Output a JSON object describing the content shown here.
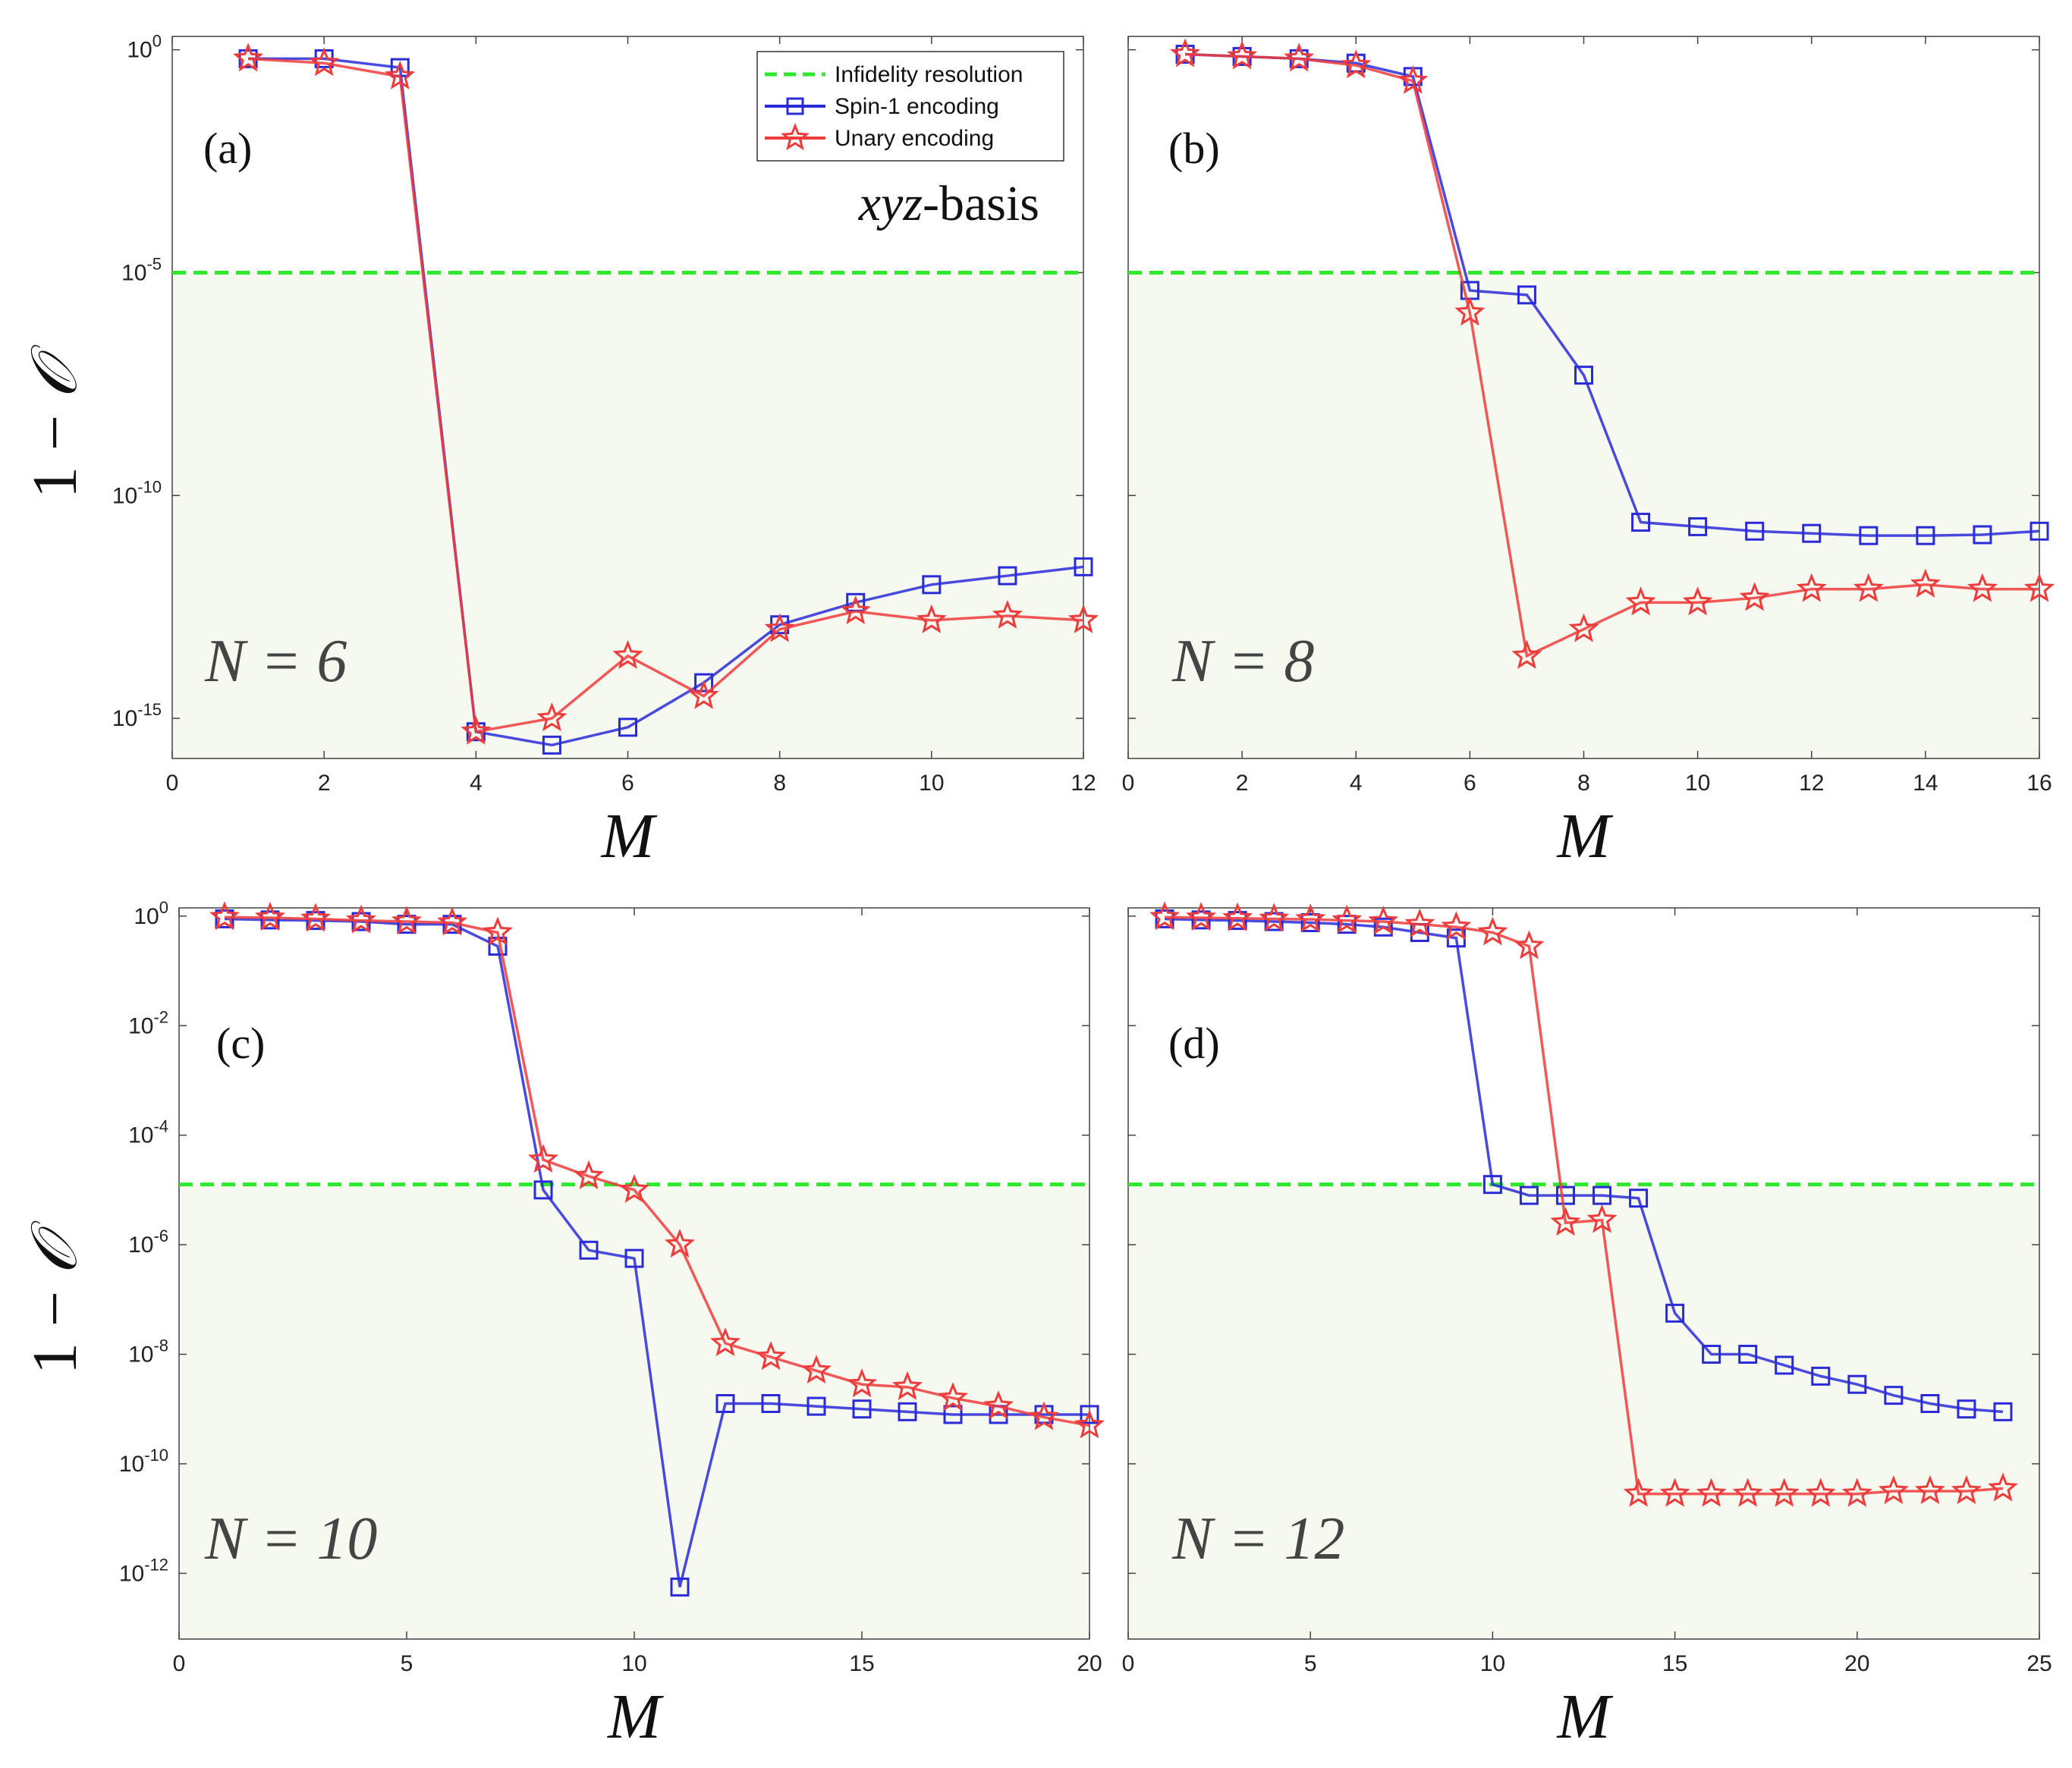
{
  "figure": {
    "ylabel_prefix": "1 −",
    "ylabel_symbol": "𝒪",
    "basis_italic": "xyz",
    "basis_suffix": "-basis"
  },
  "legend": {
    "resolution": "Infidelity resolution",
    "spin1": "Spin-1 encoding",
    "unary": "Unary encoding"
  },
  "colors": {
    "spin1": "#2a2ad8",
    "unary": "#ee3b3b",
    "resolution": "#2ee82e",
    "shade": "#f5f9ef"
  },
  "chart_data": [
    {
      "type": "line",
      "panel": "(a)",
      "n_label": "N = 6",
      "xlabel": "M",
      "ylabel": "1 − 𝒪",
      "yscale": "log",
      "xlim": [
        0,
        12
      ],
      "ylim": [
        -15.9,
        0.3
      ],
      "xticks": [
        "0",
        "2",
        "4",
        "6",
        "8",
        "10",
        "12"
      ],
      "yticks": [
        {
          "exp": 0,
          "label": "0"
        },
        {
          "exp": -5,
          "label": "-5"
        },
        {
          "exp": -10,
          "label": "-10"
        },
        {
          "exp": -15,
          "label": "-15"
        }
      ],
      "resolution_log10": -5,
      "series": [
        {
          "name": "Spin-1 encoding",
          "x": [
            1,
            2,
            3,
            4,
            5,
            6,
            7,
            8,
            9,
            10,
            11,
            12
          ],
          "log10": [
            -0.2,
            -0.2,
            -0.4,
            -15.3,
            -15.6,
            -15.2,
            -14.2,
            -12.9,
            -12.4,
            -12.0,
            -11.8,
            -11.6
          ]
        },
        {
          "name": "Unary encoding",
          "x": [
            1,
            2,
            3,
            4,
            5,
            6,
            7,
            8,
            9,
            10,
            11,
            12
          ],
          "log10": [
            -0.2,
            -0.3,
            -0.6,
            -15.3,
            -15.0,
            -13.6,
            -14.5,
            -13.0,
            -12.6,
            -12.8,
            -12.7,
            -12.8
          ]
        }
      ]
    },
    {
      "type": "line",
      "panel": "(b)",
      "n_label": "N = 8",
      "xlabel": "M",
      "ylabel": "1 − 𝒪",
      "yscale": "log",
      "xlim": [
        0,
        16
      ],
      "ylim": [
        -15.9,
        0.3
      ],
      "xticks": [
        "0",
        "2",
        "4",
        "6",
        "8",
        "10",
        "12",
        "14",
        "16"
      ],
      "yticks": [
        {
          "exp": 0,
          "label": ""
        },
        {
          "exp": -5,
          "label": ""
        },
        {
          "exp": -10,
          "label": ""
        },
        {
          "exp": -15,
          "label": ""
        }
      ],
      "resolution_log10": -5,
      "series": [
        {
          "name": "Spin-1 encoding",
          "x": [
            1,
            2,
            3,
            4,
            5,
            6,
            7,
            8,
            9,
            10,
            11,
            12,
            13,
            14,
            15,
            16
          ],
          "log10": [
            -0.1,
            -0.15,
            -0.2,
            -0.3,
            -0.6,
            -5.4,
            -5.5,
            -7.3,
            -10.6,
            -10.7,
            -10.8,
            -10.85,
            -10.9,
            -10.9,
            -10.88,
            -10.8
          ]
        },
        {
          "name": "Unary encoding",
          "x": [
            1,
            2,
            3,
            4,
            5,
            6,
            7,
            8,
            9,
            10,
            11,
            12,
            13,
            14,
            15,
            16
          ],
          "log10": [
            -0.1,
            -0.15,
            -0.2,
            -0.35,
            -0.7,
            -5.9,
            -13.6,
            -13.0,
            -12.4,
            -12.4,
            -12.3,
            -12.1,
            -12.1,
            -12.0,
            -12.1,
            -12.1
          ]
        }
      ]
    },
    {
      "type": "line",
      "panel": "(c)",
      "n_label": "N = 10",
      "xlabel": "M",
      "ylabel": "1 − 𝒪",
      "yscale": "log",
      "xlim": [
        0,
        20
      ],
      "ylim": [
        -13.2,
        0.15
      ],
      "xticks": [
        "0",
        "5",
        "10",
        "15",
        "20"
      ],
      "yticks": [
        {
          "exp": 0,
          "label": "0"
        },
        {
          "exp": -2,
          "label": "-2"
        },
        {
          "exp": -4,
          "label": "-4"
        },
        {
          "exp": -6,
          "label": "-6"
        },
        {
          "exp": -8,
          "label": "-8"
        },
        {
          "exp": -10,
          "label": "-10"
        },
        {
          "exp": -12,
          "label": "-12"
        }
      ],
      "resolution_log10": -4.9,
      "series": [
        {
          "name": "Spin-1 encoding",
          "x": [
            1,
            2,
            3,
            4,
            5,
            6,
            7,
            8,
            9,
            10,
            11,
            12,
            13,
            14,
            15,
            16,
            17,
            18,
            19,
            20
          ],
          "log10": [
            -0.05,
            -0.07,
            -0.08,
            -0.1,
            -0.15,
            -0.15,
            -0.55,
            -5.0,
            -6.1,
            -6.25,
            -12.25,
            -8.9,
            -8.9,
            -8.95,
            -9.0,
            -9.05,
            -9.1,
            -9.1,
            -9.1,
            -9.1
          ]
        },
        {
          "name": "Unary encoding",
          "x": [
            1,
            2,
            3,
            4,
            5,
            6,
            7,
            8,
            9,
            10,
            11,
            12,
            13,
            14,
            15,
            16,
            17,
            18,
            19,
            20
          ],
          "log10": [
            -0.02,
            -0.03,
            -0.05,
            -0.08,
            -0.1,
            -0.12,
            -0.3,
            -4.45,
            -4.75,
            -5.0,
            -6.0,
            -7.8,
            -8.05,
            -8.3,
            -8.55,
            -8.6,
            -8.8,
            -8.95,
            -9.15,
            -9.3
          ]
        }
      ]
    },
    {
      "type": "line",
      "panel": "(d)",
      "n_label": "N = 12",
      "xlabel": "M",
      "ylabel": "1 − 𝒪",
      "yscale": "log",
      "xlim": [
        0,
        25
      ],
      "ylim": [
        -13.2,
        0.15
      ],
      "xticks": [
        "0",
        "5",
        "10",
        "15",
        "20",
        "25"
      ],
      "yticks": [
        {
          "exp": 0,
          "label": ""
        },
        {
          "exp": -2,
          "label": ""
        },
        {
          "exp": -4,
          "label": ""
        },
        {
          "exp": -6,
          "label": ""
        },
        {
          "exp": -8,
          "label": ""
        },
        {
          "exp": -10,
          "label": ""
        },
        {
          "exp": -12,
          "label": ""
        }
      ],
      "resolution_log10": -4.9,
      "series": [
        {
          "name": "Spin-1 encoding",
          "x": [
            1,
            2,
            3,
            4,
            5,
            6,
            7,
            8,
            9,
            10,
            11,
            12,
            13,
            14,
            15,
            16,
            17,
            18,
            19,
            20,
            21,
            22,
            23,
            24
          ],
          "log10": [
            -0.05,
            -0.07,
            -0.08,
            -0.1,
            -0.12,
            -0.15,
            -0.2,
            -0.3,
            -0.4,
            -4.9,
            -5.1,
            -5.1,
            -5.1,
            -5.15,
            -7.25,
            -8.0,
            -8.0,
            -8.2,
            -8.4,
            -8.55,
            -8.75,
            -8.9,
            -9.0,
            -9.05
          ]
        },
        {
          "name": "Unary encoding",
          "x": [
            1,
            2,
            3,
            4,
            5,
            6,
            7,
            8,
            9,
            10,
            11,
            12,
            13,
            14,
            15,
            16,
            17,
            18,
            19,
            20,
            21,
            22,
            23,
            24
          ],
          "log10": [
            -0.02,
            -0.03,
            -0.04,
            -0.05,
            -0.06,
            -0.08,
            -0.1,
            -0.15,
            -0.2,
            -0.3,
            -0.55,
            -5.6,
            -5.55,
            -10.55,
            -10.55,
            -10.55,
            -10.55,
            -10.55,
            -10.55,
            -10.55,
            -10.5,
            -10.5,
            -10.5,
            -10.45
          ]
        }
      ]
    }
  ]
}
